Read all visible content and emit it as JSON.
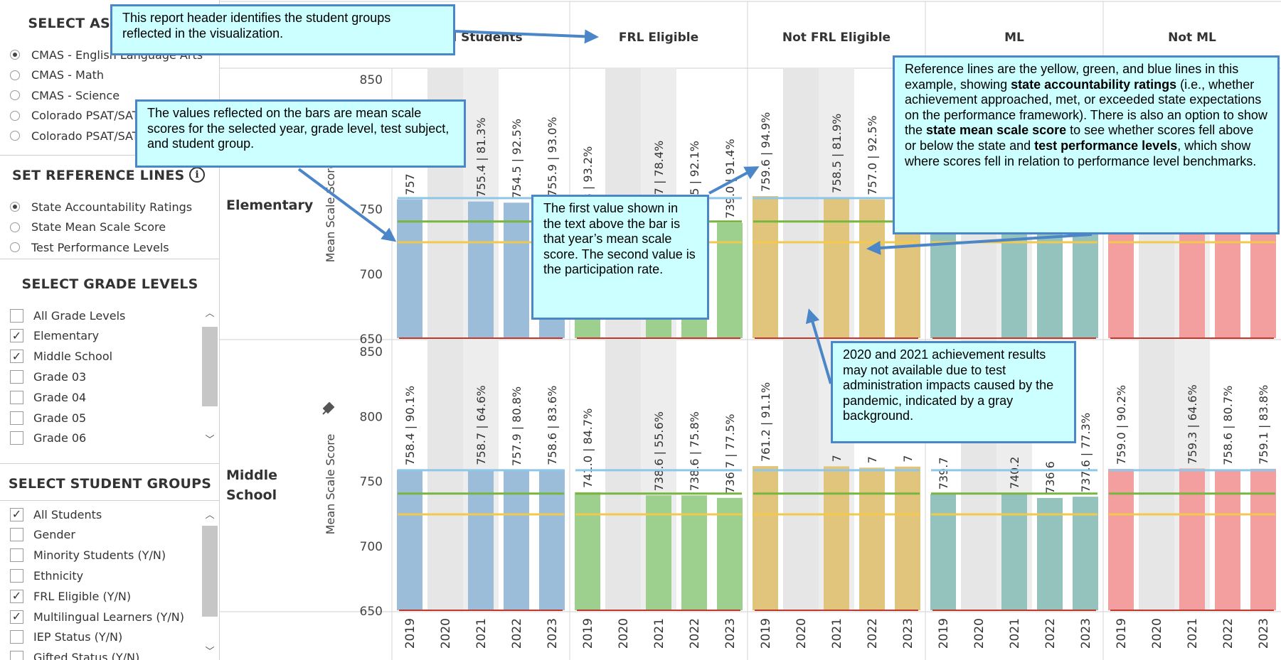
{
  "sidebar": {
    "assessment_title": "SELECT ASSESSMENT",
    "assessments": [
      {
        "label": "CMAS - English Language Arts",
        "selected": true
      },
      {
        "label": "CMAS - Math",
        "selected": false
      },
      {
        "label": "CMAS - Science",
        "selected": false
      },
      {
        "label": "Colorado PSAT/SAT",
        "selected": false
      },
      {
        "label": "Colorado PSAT/SAT",
        "selected": false
      }
    ],
    "reference_title": "SET REFERENCE LINES",
    "reference_options": [
      {
        "label": "State Accountability Ratings",
        "selected": true
      },
      {
        "label": "State Mean Scale Score",
        "selected": false
      },
      {
        "label": "Test Performance Levels",
        "selected": false
      }
    ],
    "grade_title": "SELECT GRADE LEVELS",
    "grades": [
      {
        "label": "All Grade Levels",
        "checked": false
      },
      {
        "label": "Elementary",
        "checked": true
      },
      {
        "label": "Middle School",
        "checked": true
      },
      {
        "label": "Grade 03",
        "checked": false
      },
      {
        "label": "Grade 04",
        "checked": false
      },
      {
        "label": "Grade 05",
        "checked": false
      },
      {
        "label": "Grade 06",
        "checked": false
      }
    ],
    "groups_title": "SELECT STUDENT GROUPS",
    "groups": [
      {
        "label": "All Students",
        "checked": true
      },
      {
        "label": "Gender",
        "checked": false
      },
      {
        "label": "Minority Students (Y/N)",
        "checked": false
      },
      {
        "label": "Ethnicity",
        "checked": false
      },
      {
        "label": "FRL Eligible (Y/N)",
        "checked": true
      },
      {
        "label": "Multilingual Learners (Y/N)",
        "checked": true
      },
      {
        "label": "IEP Status (Y/N)",
        "checked": false
      },
      {
        "label": "Gifted Status (Y/N)",
        "checked": false
      }
    ]
  },
  "chart_data": {
    "type": "bar",
    "ylabel": "Mean Scale Score",
    "ylim": [
      650,
      850
    ],
    "yticks": [
      650,
      700,
      750,
      800,
      850
    ],
    "years": [
      "2019",
      "2020",
      "2021",
      "2022",
      "2023"
    ],
    "groups": [
      {
        "name": "All Students",
        "color": "#9bbdd9"
      },
      {
        "name": "FRL Eligible",
        "color": "#9dcf8f"
      },
      {
        "name": "Not FRL Eligible",
        "color": "#e2c57c"
      },
      {
        "name": "ML",
        "color": "#94c3be"
      },
      {
        "name": "Not ML",
        "color": "#f39f9f"
      }
    ],
    "pandemic_years": [
      "2020",
      "2021"
    ],
    "reference_lines": {
      "Elementary": [
        {
          "value": 758,
          "color": "#8fc7e8"
        },
        {
          "value": 740,
          "color": "#78b640"
        },
        {
          "value": 724,
          "color": "#f2c94c"
        }
      ],
      "Middle School": [
        {
          "value": 758,
          "color": "#8fc7e8"
        },
        {
          "value": 740,
          "color": "#78b640"
        },
        {
          "value": 724,
          "color": "#f2c94c"
        }
      ]
    },
    "rows": [
      {
        "name": "Elementary",
        "bars": [
          [
            {
              "v": 757.0,
              "label": "757"
            },
            null,
            {
              "v": 755.4,
              "label": "755.4 | 81.3%"
            },
            {
              "v": 754.5,
              "label": "754.5 | 92.5%"
            },
            {
              "v": 755.9,
              "label": "755.9 | 93.0%"
            }
          ],
          [
            {
              "v": 733.3,
              "label": "733.3 | 93.2%"
            },
            null,
            {
              "v": 737.7,
              "label": "737.7 | 78.4%"
            },
            {
              "v": 737.5,
              "label": "737.5 | 92.1%"
            },
            {
              "v": 739.0,
              "label": "739.0 | 91.4%"
            }
          ],
          [
            {
              "v": 759.6,
              "label": "759.6 | 94.9%"
            },
            null,
            {
              "v": 758.5,
              "label": "758.5 | 81.9%"
            },
            {
              "v": 757.0,
              "label": "757.0 | 92.5%"
            },
            {
              "v": 757.5,
              "label": ""
            }
          ],
          [
            {
              "v": 738.6,
              "label": ""
            },
            null,
            {
              "v": 739.7,
              "label": ""
            },
            {
              "v": 738.1,
              "label": ""
            },
            {
              "v": 738.7,
              "label": ""
            }
          ],
          [
            {
              "v": 757.9,
              "label": ""
            },
            null,
            {
              "v": 757.0,
              "label": ""
            },
            {
              "v": 756.1,
              "label": ""
            },
            {
              "v": 756.9,
              "label": ""
            }
          ]
        ]
      },
      {
        "name": "Middle School",
        "bars": [
          [
            {
              "v": 758.4,
              "label": "758.4 | 90.1%"
            },
            null,
            {
              "v": 758.7,
              "label": "758.7 | 64.6%"
            },
            {
              "v": 757.9,
              "label": "757.9 | 80.8%"
            },
            {
              "v": 758.6,
              "label": "758.6 | 83.6%"
            }
          ],
          [
            {
              "v": 741.0,
              "label": "741.0 | 84.7%"
            },
            null,
            {
              "v": 738.6,
              "label": "738.6 | 55.6%"
            },
            {
              "v": 738.6,
              "label": "738.6 | 75.8%"
            },
            {
              "v": 736.7,
              "label": "736.7 | 77.5%"
            }
          ],
          [
            {
              "v": 761.2,
              "label": "761.2 | 91.1%"
            },
            null,
            {
              "v": 761.0,
              "label": "7"
            },
            {
              "v": 760.0,
              "label": "7"
            },
            {
              "v": 760.8,
              "label": "7"
            }
          ],
          [
            {
              "v": 739.7,
              "label": "739.7"
            },
            null,
            {
              "v": 740.2,
              "label": "740.2"
            },
            {
              "v": 736.6,
              "label": "736.6"
            },
            {
              "v": 737.6,
              "label": "737.6 | 77.3%"
            }
          ],
          [
            {
              "v": 759.0,
              "label": "759.0 | 90.2%"
            },
            null,
            {
              "v": 759.3,
              "label": "759.3 | 64.6%"
            },
            {
              "v": 758.6,
              "label": "758.6 | 80.7%"
            },
            {
              "v": 759.1,
              "label": "759.1 | 83.8%"
            }
          ]
        ]
      }
    ]
  },
  "callouts": {
    "header": "This report header identifies the student groups reflected in the visualization.",
    "bars": "The values reflected on the bars are mean scale scores for the selected year, grade level, test subject, and student group.",
    "first_value": "The first value shown in the text above the bar is that year’s mean scale score. The second value is the participation rate.",
    "ref_p1": "Reference lines are the yellow, green, and blue lines in this example, showing ",
    "ref_b1": "state accountability ratings",
    "ref_p2": " (i.e., whether achievement approached, met, or exceeded state expectations on the performance framework). There is also an option to show the ",
    "ref_b2": "state mean scale score",
    "ref_p3": " to see whether scores fell above or below the state and ",
    "ref_b3": "test performance levels",
    "ref_p4": ", which show where scores fell in relation to performance level benchmarks.",
    "pandemic": "2020 and 2021 achievement results may not available due to test administration impacts caused by the pandemic, indicated by a gray background."
  }
}
